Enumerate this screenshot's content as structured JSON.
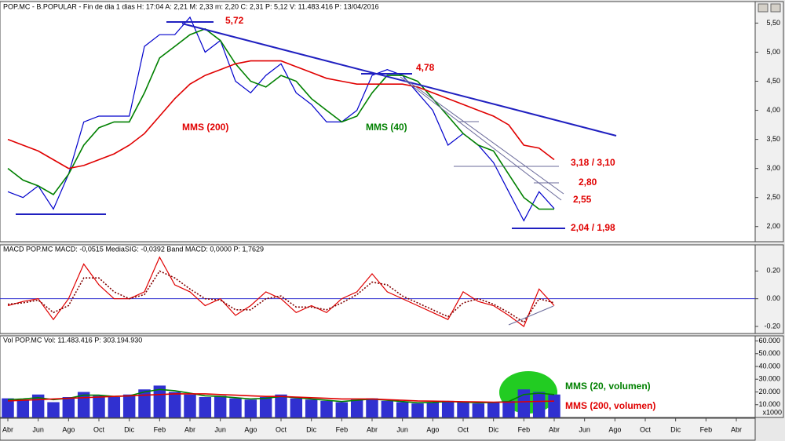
{
  "chart_data": {
    "type": "stock",
    "categories": [
      "Abr",
      null,
      "Jun",
      null,
      "Ago",
      null,
      "Oct",
      null,
      "Dic",
      null,
      "Feb",
      null,
      "Abr",
      null,
      "Jun",
      null,
      "Ago",
      null,
      "Oct",
      null,
      "Dic",
      null,
      "Feb",
      null,
      "Abr",
      null,
      "Jun",
      null,
      "Ago",
      null,
      "Oct",
      null,
      "Dic",
      null,
      "Feb",
      null,
      "Abr",
      null,
      "Jun",
      null,
      "Ago",
      null,
      "Oct",
      null,
      "Dic",
      null,
      "Feb",
      null,
      "Abr"
    ],
    "panels": [
      {
        "type": "line",
        "title": "POP.MC - B.POPULAR - Fin de dia 1 dias H: 17:04 A: 2,21 M: 2,33 m: 2,20 C: 2,31 P: 5,12 V: 11.483.416 P: 13/04/2016",
        "ylim": [
          1.74,
          5.87
        ],
        "yticks": [
          {
            "value": 2.0,
            "label": "2,00"
          },
          {
            "value": 2.5,
            "label": "2,50"
          },
          {
            "value": 3.0,
            "label": "3,00"
          },
          {
            "value": 3.5,
            "label": "3,50"
          },
          {
            "value": 4.0,
            "label": "4,00"
          },
          {
            "value": 4.5,
            "label": "4,50"
          },
          {
            "value": 5.0,
            "label": "5,00"
          },
          {
            "value": 5.5,
            "label": "5,50"
          }
        ],
        "series": [
          {
            "color": "#0000cc",
            "values": [
              2.6,
              2.5,
              2.7,
              2.3,
              2.9,
              3.8,
              3.9,
              3.9,
              3.9,
              5.1,
              5.3,
              5.3,
              5.6,
              5.0,
              5.2,
              4.5,
              4.3,
              4.6,
              4.8,
              4.3,
              4.1,
              3.8,
              3.8,
              4.0,
              4.6,
              4.7,
              4.6,
              4.3,
              4.0,
              3.4,
              3.6,
              3.4,
              3.1,
              2.6,
              2.1,
              2.6,
              2.31,
              null,
              null,
              null,
              null,
              null,
              null,
              null,
              null,
              null,
              null,
              null,
              null
            ]
          },
          {
            "name": "MMS (40)",
            "color": "#008000",
            "values": [
              3.0,
              2.8,
              2.7,
              2.55,
              2.9,
              3.4,
              3.7,
              3.8,
              3.8,
              4.3,
              4.9,
              5.1,
              5.3,
              5.4,
              5.2,
              4.8,
              4.5,
              4.4,
              4.6,
              4.5,
              4.2,
              4.0,
              3.8,
              3.9,
              4.3,
              4.6,
              4.6,
              4.5,
              4.2,
              3.9,
              3.6,
              3.4,
              3.3,
              2.9,
              2.5,
              2.3,
              2.3,
              null,
              null,
              null,
              null,
              null,
              null,
              null,
              null,
              null,
              null,
              null,
              null
            ]
          },
          {
            "name": "MMS (200)",
            "color": "#e00000",
            "values": [
              3.5,
              3.4,
              3.3,
              3.15,
              3.0,
              3.05,
              3.15,
              3.25,
              3.4,
              3.6,
              3.9,
              4.2,
              4.45,
              4.6,
              4.7,
              4.8,
              4.85,
              4.85,
              4.85,
              4.75,
              4.65,
              4.55,
              4.5,
              4.45,
              4.45,
              4.45,
              4.45,
              4.4,
              4.3,
              4.2,
              4.1,
              4.0,
              3.9,
              3.75,
              3.4,
              3.35,
              3.15,
              null,
              null,
              null,
              null,
              null,
              null,
              null,
              null,
              null,
              null,
              null,
              null
            ]
          }
        ],
        "annotations": [
          {
            "text": "5,72",
            "color": "#e00000"
          },
          {
            "text": "4,78",
            "color": "#e00000"
          },
          {
            "text": "3,18 / 3,10",
            "color": "#e00000"
          },
          {
            "text": "2,80",
            "color": "#e00000"
          },
          {
            "text": "2,55",
            "color": "#e00000"
          },
          {
            "text": "2,04 / 1,98",
            "color": "#e00000"
          }
        ]
      },
      {
        "type": "line",
        "title": "MACD POP.MC MACD: -0,0515 MediaSIG: -0,0392 Band MACD: 0,0000 P: 1,7629",
        "ylim": [
          -0.251,
          0.389
        ],
        "yticks": [
          {
            "value": -0.2,
            "label": "-0.20"
          },
          {
            "value": 0,
            "label": "0.00"
          },
          {
            "value": 0.2,
            "label": "0.20"
          }
        ],
        "series": [
          {
            "color": "#e00000",
            "values": [
              -0.05,
              -0.02,
              0.0,
              -0.15,
              0.0,
              0.25,
              0.1,
              0.0,
              0.0,
              0.05,
              0.3,
              0.1,
              0.05,
              -0.05,
              0.0,
              -0.12,
              -0.05,
              0.05,
              0.0,
              -0.1,
              -0.05,
              -0.1,
              0.0,
              0.05,
              0.18,
              0.05,
              0.0,
              -0.05,
              -0.1,
              -0.15,
              0.05,
              -0.02,
              -0.05,
              -0.12,
              -0.2,
              0.07,
              -0.05,
              null,
              null,
              null,
              null,
              null,
              null,
              null,
              null,
              null,
              null,
              null,
              null
            ]
          },
          {
            "color": "#800000",
            "dash": true,
            "values": [
              -0.04,
              -0.03,
              -0.01,
              -0.1,
              -0.05,
              0.15,
              0.15,
              0.05,
              0.0,
              0.03,
              0.2,
              0.15,
              0.07,
              0.0,
              -0.01,
              -0.08,
              -0.08,
              0.0,
              0.02,
              -0.06,
              -0.06,
              -0.08,
              -0.03,
              0.03,
              0.12,
              0.1,
              0.02,
              -0.03,
              -0.08,
              -0.13,
              -0.03,
              0.0,
              -0.04,
              -0.1,
              -0.17,
              0.0,
              -0.03,
              null,
              null,
              null,
              null,
              null,
              null,
              null,
              null,
              null,
              null,
              null,
              null
            ]
          }
        ]
      },
      {
        "type": "bar",
        "title": "Vol POP.MC Vol: 11.483.416 P: 303.194.930",
        "unit": "x1000",
        "ylim": [
          0,
          64000
        ],
        "yticks": [
          {
            "value": 10000,
            "label": "10.000"
          },
          {
            "value": 20000,
            "label": "20.000"
          },
          {
            "value": 30000,
            "label": "30.000"
          },
          {
            "value": 40000,
            "label": "40.000"
          },
          {
            "value": 50000,
            "label": "50.000"
          },
          {
            "value": 60000,
            "label": "60.000"
          }
        ],
        "series": [
          {
            "color": "#3030d0",
            "values": [
              15000,
              14000,
              18000,
              12000,
              16000,
              20000,
              17000,
              16000,
              18000,
              22000,
              25000,
              20000,
              18000,
              16000,
              17000,
              15000,
              14000,
              16000,
              18000,
              15000,
              14000,
              13000,
              12000,
              14000,
              15000,
              13000,
              12000,
              11000,
              12000,
              13000,
              12000,
              11000,
              12000,
              13000,
              22000,
              20000,
              18000,
              null,
              null,
              null,
              null,
              null,
              null,
              null,
              null,
              null,
              null,
              null,
              null
            ]
          },
          {
            "name": "MMS (20, volumen)",
            "color": "#008000",
            "line": true,
            "values": [
              14000,
              14500,
              15500,
              14000,
              15000,
              17500,
              17500,
              16500,
              17000,
              20000,
              22000,
              21000,
              19000,
              17000,
              16500,
              15500,
              14500,
              15000,
              16500,
              15500,
              14500,
              13500,
              12500,
              13500,
              14500,
              13500,
              12500,
              11500,
              11800,
              12500,
              12000,
              11500,
              11800,
              12500,
              18000,
              19000,
              18000,
              null,
              null,
              null,
              null,
              null,
              null,
              null,
              null,
              null,
              null,
              null,
              null
            ]
          },
          {
            "name": "MMS (200, volumen)",
            "color": "#e00000",
            "line": true,
            "values": [
              13000,
              13500,
              14000,
              14500,
              15000,
              15500,
              16000,
              16500,
              17000,
              17500,
              18000,
              18500,
              18500,
              18500,
              18000,
              17500,
              17000,
              16500,
              16500,
              16000,
              15500,
              15000,
              14500,
              14500,
              14500,
              14000,
              13500,
              13000,
              12800,
              12600,
              12400,
              12200,
              12000,
              12000,
              12300,
              12600,
              12800,
              null,
              null,
              null,
              null,
              null,
              null,
              null,
              null,
              null,
              null,
              null,
              null
            ]
          }
        ]
      }
    ]
  }
}
